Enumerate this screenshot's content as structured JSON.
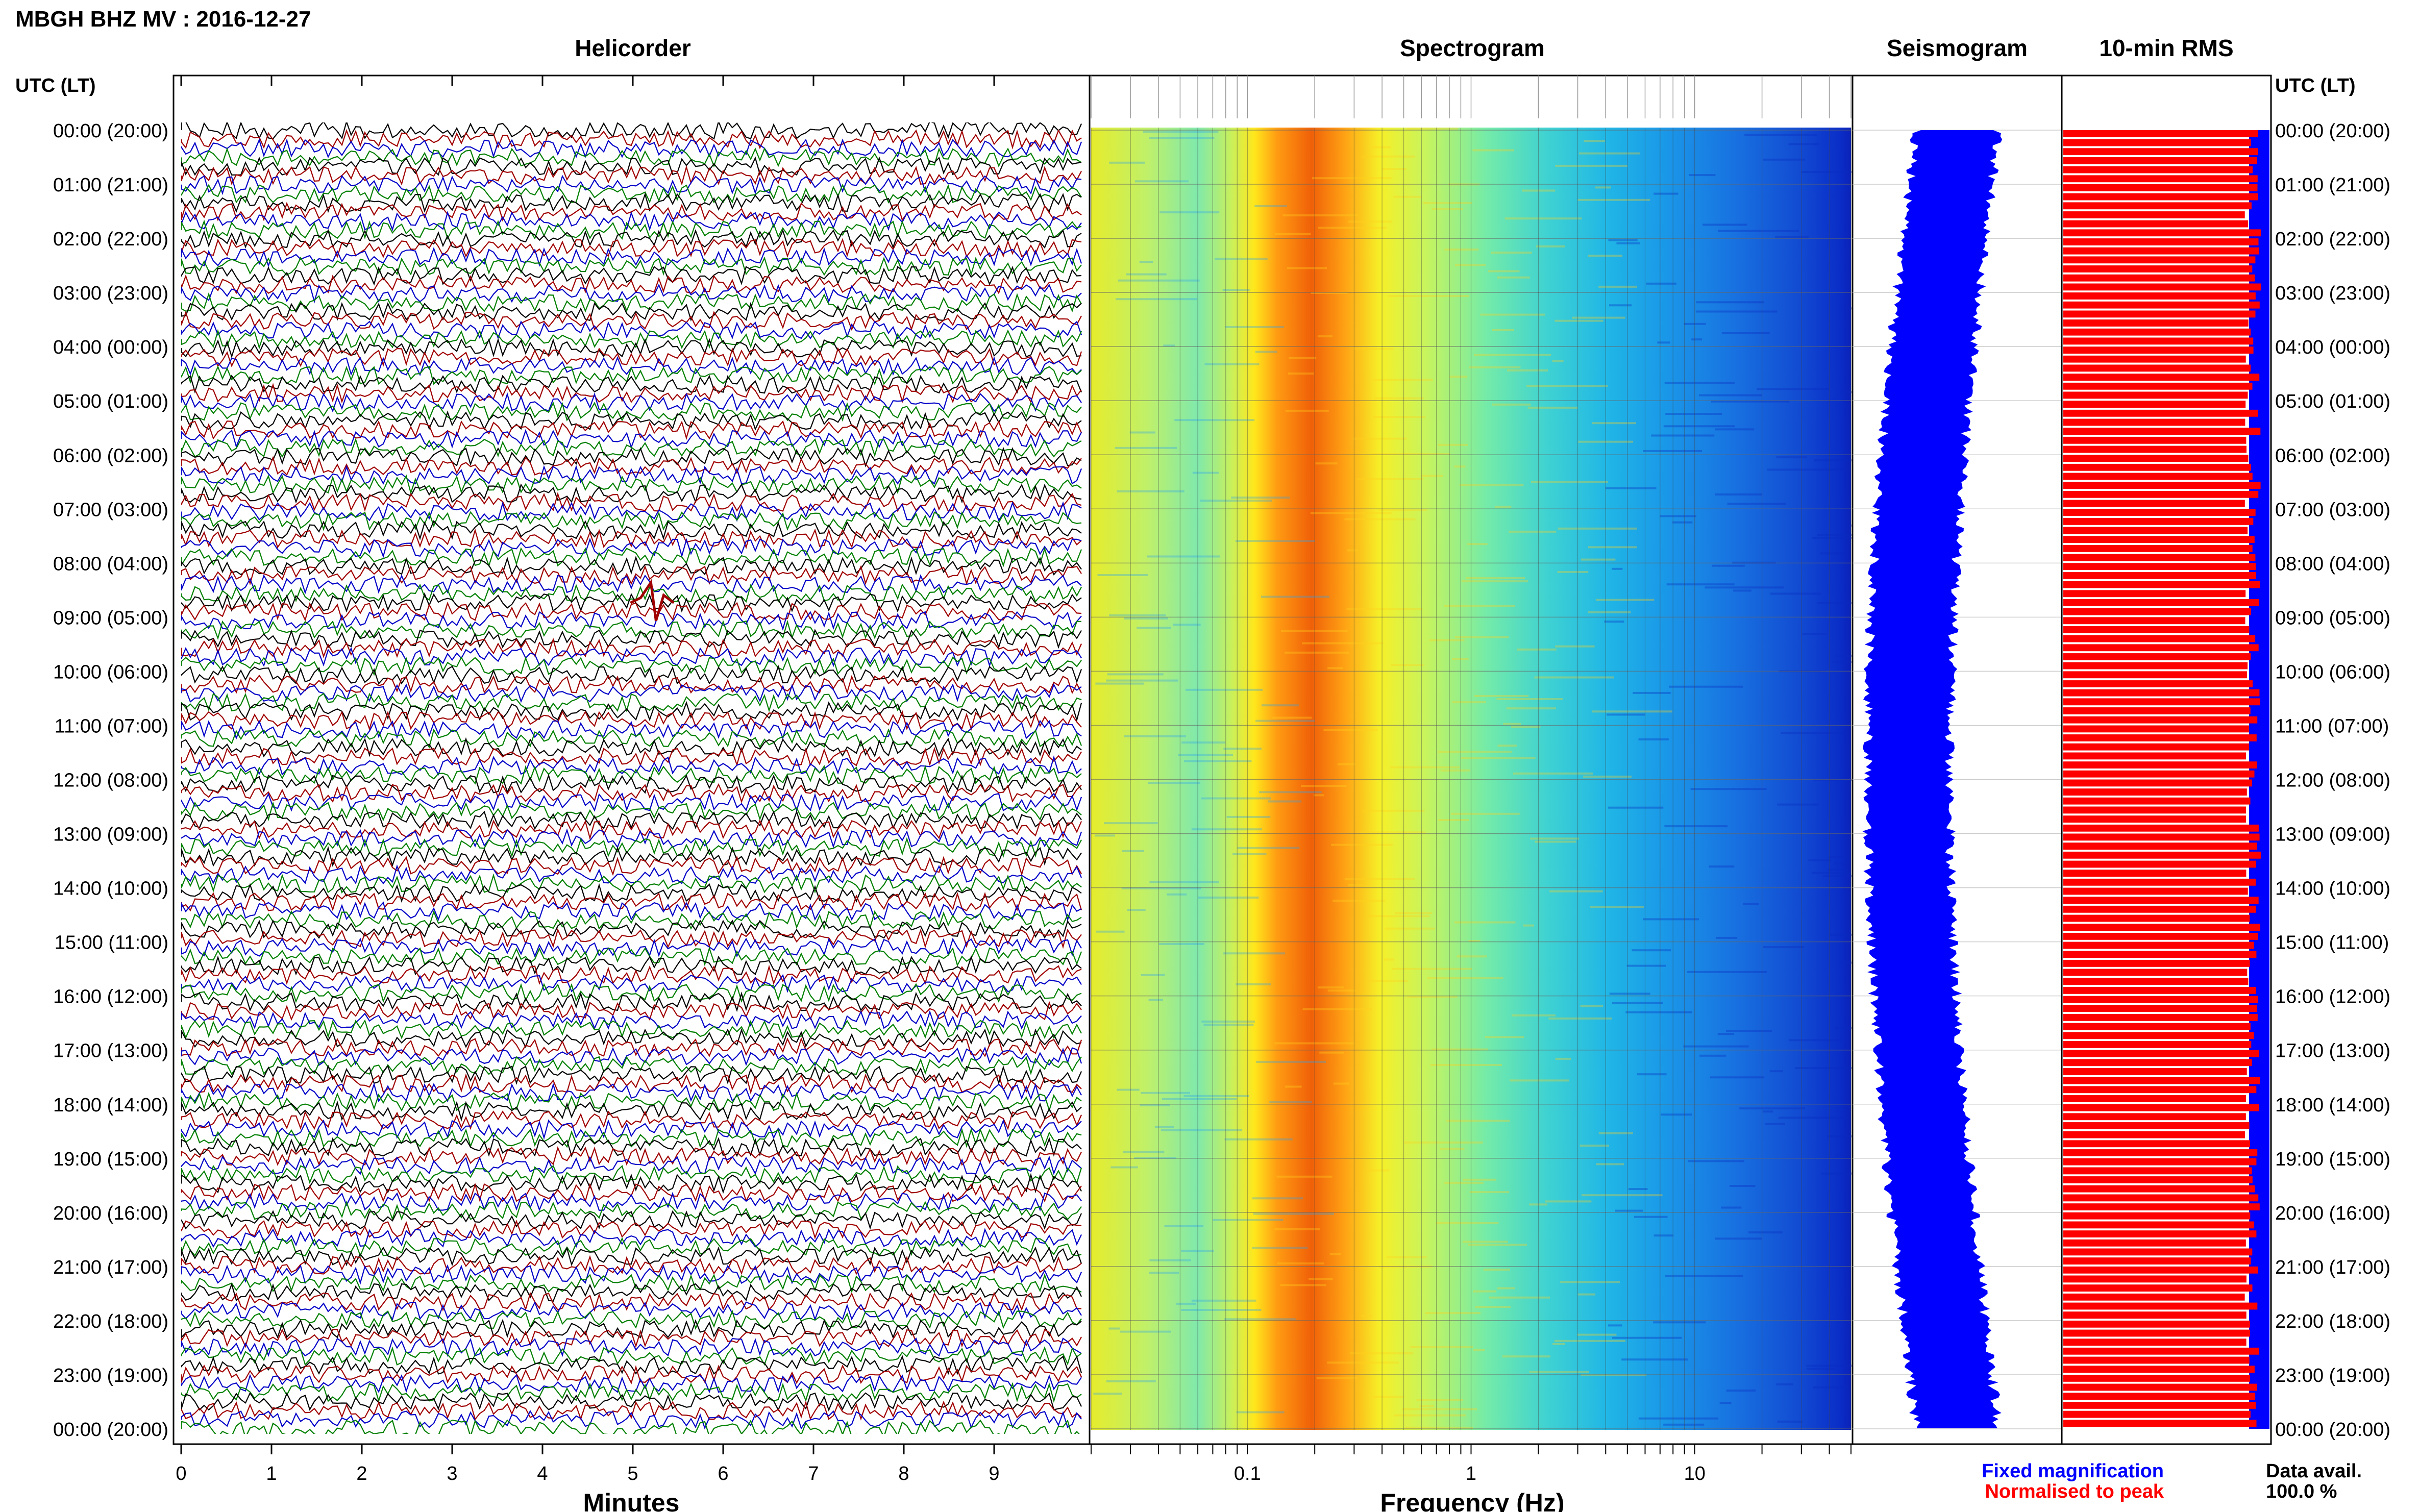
{
  "figure": {
    "title": "MBGH BHZ MV : 2016-12-27",
    "utc_header_left": "UTC (LT)",
    "utc_header_right": "UTC (LT)",
    "legend_fixed": "Fixed magnification",
    "legend_normalised": "Normalised to peak",
    "data_avail_label": "Data avail.",
    "data_avail_value": "100.0 %"
  },
  "time_labels": [
    "00:00 (20:00)",
    "01:00 (21:00)",
    "02:00 (22:00)",
    "03:00 (23:00)",
    "04:00 (00:00)",
    "05:00 (01:00)",
    "06:00 (02:00)",
    "07:00 (03:00)",
    "08:00 (04:00)",
    "09:00 (05:00)",
    "10:00 (06:00)",
    "11:00 (07:00)",
    "12:00 (08:00)",
    "13:00 (09:00)",
    "14:00 (10:00)",
    "15:00 (11:00)",
    "16:00 (12:00)",
    "17:00 (13:00)",
    "18:00 (14:00)",
    "19:00 (15:00)",
    "20:00 (16:00)",
    "21:00 (17:00)",
    "22:00 (18:00)",
    "23:00 (19:00)",
    "00:00 (20:00)"
  ],
  "colors": {
    "helicorder_lines": [
      "#000000",
      "#a00000",
      "#0000c8",
      "#008000"
    ],
    "seismogram": "#0000ff",
    "rms_bar": "#ff0000",
    "rms_edge": "#0000ff",
    "fixed_text": "#0000ff",
    "normalised_text": "#ff0000"
  },
  "chart_data": [
    {
      "type": "line",
      "title": "Helicorder",
      "xlabel": "Minutes",
      "x_ticks": [
        "0",
        "1",
        "2",
        "3",
        "4",
        "5",
        "6",
        "7",
        "8",
        "9"
      ],
      "xlim": [
        0,
        10
      ],
      "rows": 144,
      "row_minutes": 10,
      "event": {
        "minute": 5.2,
        "time": "09:00",
        "description": "small event visible near 08:55 UTC row"
      }
    },
    {
      "type": "heatmap",
      "title": "Spectrogram",
      "xlabel": "Frequency (Hz)",
      "x_scale": "log",
      "xlim": [
        0.02,
        50
      ],
      "x_ticks": [
        "0.1",
        "1",
        "10"
      ],
      "peak_frequency_hz": 0.3,
      "colormap": "jet"
    },
    {
      "type": "line",
      "title": "Seismogram",
      "note": "24-hour trace drawn at fixed magnification"
    },
    {
      "type": "bar",
      "title": "10-min RMS",
      "orientation": "horizontal",
      "bars": 144,
      "relative_level_approx": 0.92
    }
  ]
}
